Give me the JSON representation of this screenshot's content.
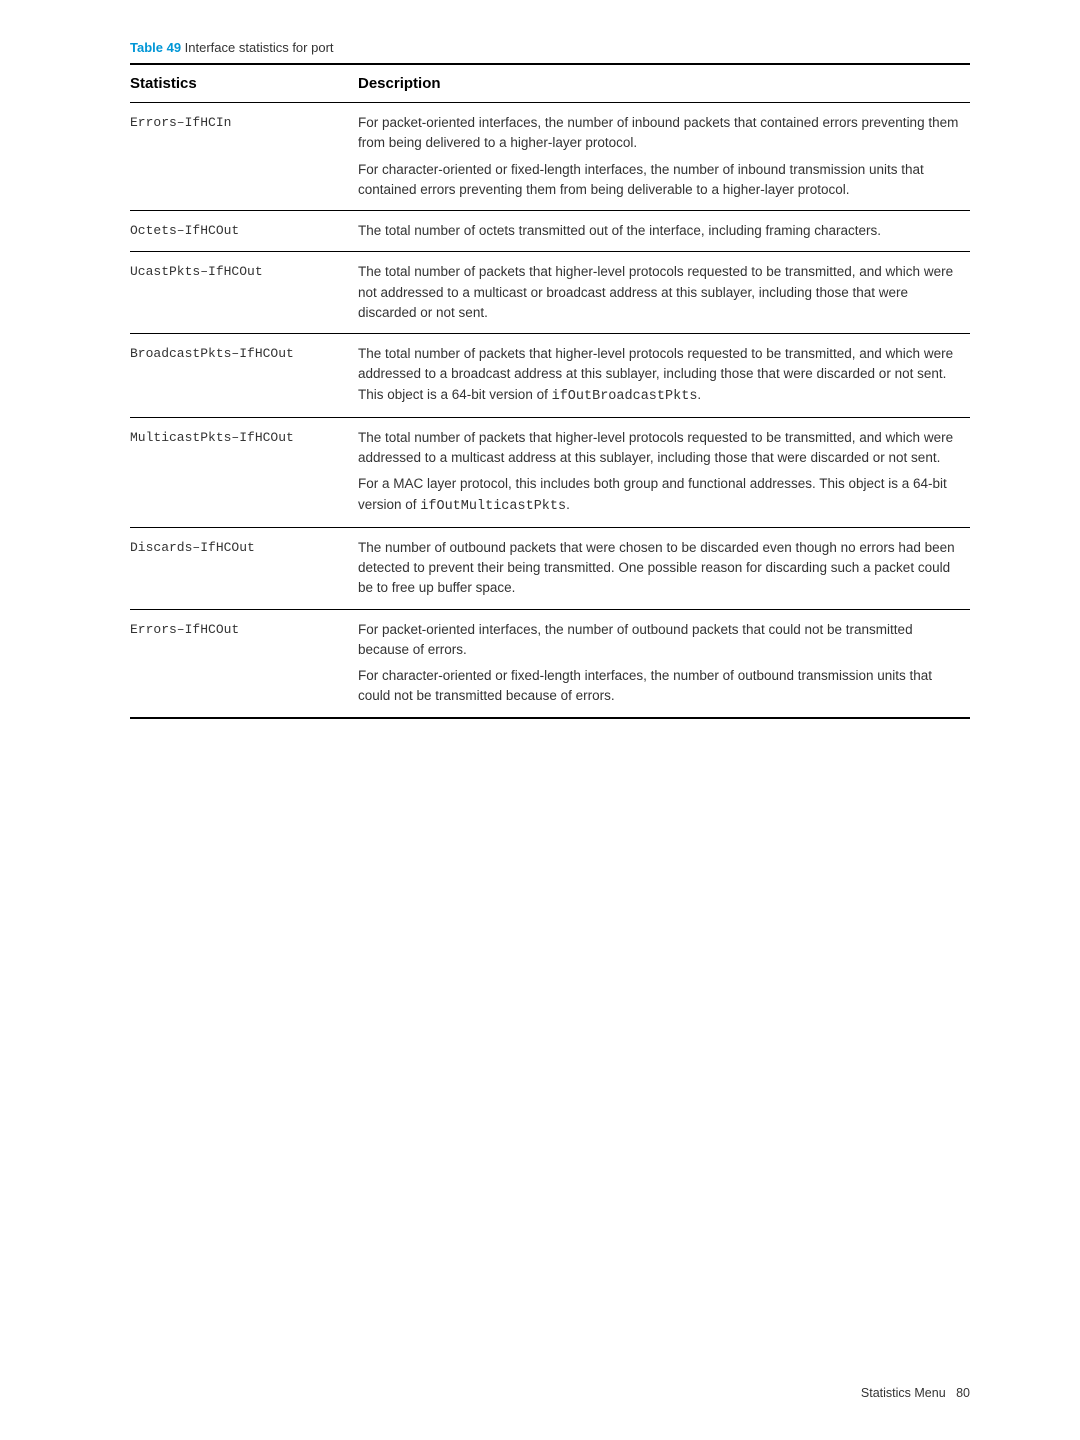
{
  "caption": {
    "label": "Table 49",
    "text": "  Interface statistics for port"
  },
  "headers": {
    "col1": "Statistics",
    "col2": "Description"
  },
  "rows": [
    {
      "stat": "Errors–IfHCIn",
      "desc": [
        {
          "pre": "For packet-oriented interfaces, the number of inbound packets that contained errors preventing them from being delivered to a higher-layer protocol."
        },
        {
          "pre": "For character-oriented or fixed-length interfaces, the number of inbound transmission units that contained errors preventing them from being deliverable to a higher-layer protocol."
        }
      ]
    },
    {
      "stat": "Octets–IfHCOut",
      "desc": [
        {
          "pre": "The total number of octets transmitted out of the interface, including framing characters."
        }
      ]
    },
    {
      "stat": "UcastPkts–IfHCOut",
      "desc": [
        {
          "pre": "The total number of packets that higher-level protocols requested to be transmitted, and which were not addressed to a multicast or broadcast address at this sublayer, including those that were discarded or not sent."
        }
      ]
    },
    {
      "stat": "BroadcastPkts–IfHCOut",
      "desc": [
        {
          "pre": "The total number of packets that higher-level protocols requested to be transmitted, and which were addressed to a broadcast address at this sublayer, including those that were discarded or not sent. This object is a 64-bit version of ",
          "mono": "ifOutBroadcastPkts",
          "post": "."
        }
      ]
    },
    {
      "stat": "MulticastPkts–IfHCOut",
      "desc": [
        {
          "pre": "The total number of packets that higher-level protocols requested to be transmitted, and which were addressed to a multicast address at this sublayer, including those that were discarded or not sent."
        },
        {
          "pre": "For a MAC layer protocol, this includes both group and functional addresses. This object is a 64-bit version of ",
          "mono": "ifOutMulticastPkts",
          "post": "."
        }
      ]
    },
    {
      "stat": "Discards–IfHCOut",
      "desc": [
        {
          "pre": "The number of outbound packets that were chosen to be discarded even though no errors had been detected to prevent their being transmitted. One possible reason for discarding such a packet could be to free up buffer space."
        }
      ]
    },
    {
      "stat": "Errors–IfHCOut",
      "desc": [
        {
          "pre": "For packet-oriented interfaces, the number of outbound packets that could not be transmitted because of errors."
        },
        {
          "pre": "For character-oriented or fixed-length interfaces, the number of outbound transmission units that could not be transmitted because of errors."
        }
      ]
    }
  ],
  "footer": {
    "section": "Statistics Menu",
    "page": "80"
  }
}
